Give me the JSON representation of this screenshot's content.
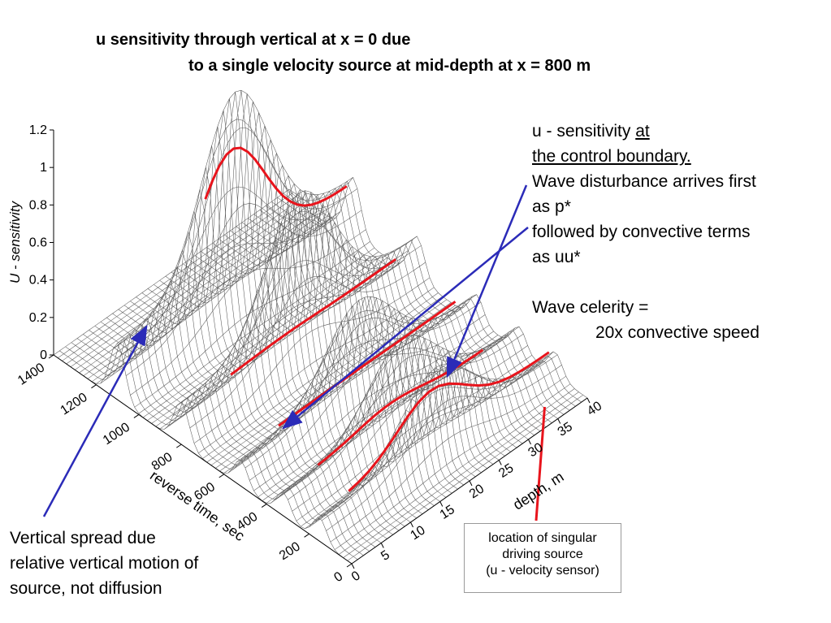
{
  "title": {
    "line1": "u sensitivity through vertical at x = 0 due",
    "line2": "to a single velocity source at mid-depth at x = 800 m"
  },
  "annotations": {
    "right": {
      "line1_prefix": "u - sensitivity ",
      "line1_underlined": "at ",
      "line2": "the control boundary.",
      "line3": "Wave disturbance arrives first",
      "line4": "as p*",
      "line5": "followed by convective terms",
      "line6": "as uu*",
      "line7": "Wave celerity =",
      "line8": "20x convective speed"
    },
    "left": {
      "line1": "Vertical spread due",
      "line2": "relative vertical motion of",
      "line3": "source, not diffusion"
    },
    "source_box": {
      "line1": "location of singular",
      "line2": "driving source",
      "line3": "(u - velocity sensor)"
    }
  },
  "colors": {
    "mesh": "#5a5a5a",
    "highlight": "#e8141c",
    "arrow": "#2b2bb8",
    "axis": "#000000"
  },
  "chart_data": {
    "type": "surface",
    "zlabel": "U - sensitivity",
    "xlabel": "reverse time, sec",
    "ylabel": "depth, m",
    "z_ticks": [
      "0",
      "0.2",
      "0.4",
      "0.6",
      "0.8",
      "1",
      "1.2"
    ],
    "time_ticks": [
      "0",
      "200",
      "400",
      "600",
      "800",
      "1000",
      "1200",
      "1400"
    ],
    "depth_ticks": [
      "0",
      "5",
      "10",
      "15",
      "20",
      "25",
      "30",
      "35",
      "40"
    ],
    "time_range": [
      0,
      1400
    ],
    "depth_range": [
      0,
      40
    ],
    "z_range": [
      0,
      1.2
    ],
    "surface_ridges": [
      {
        "time_peak": 150,
        "depth_center": 20,
        "depth_drift_per_sec": 0.0,
        "amplitude": 0.5,
        "width_sec": 45
      },
      {
        "time_peak": 320,
        "depth_center": 20,
        "depth_drift_per_sec": 0.004,
        "amplitude": 0.5,
        "width_sec": 45
      },
      {
        "time_peak": 520,
        "depth_center": 20,
        "depth_drift_per_sec": 0.008,
        "amplitude": 0.55,
        "width_sec": 45
      },
      {
        "time_peak": 800,
        "depth_center": 20,
        "depth_drift_per_sec": 0.012,
        "amplitude": 0.9,
        "width_sec": 50
      },
      {
        "time_peak": 1100,
        "depth_center": 20,
        "depth_drift_per_sec": 0.014,
        "amplitude": 1.2,
        "width_sec": 50
      }
    ],
    "ridge_width_depth_m": 8,
    "highlight_traces": [
      {
        "time": 180,
        "depth_from": 6,
        "depth_to": 40
      },
      {
        "time": 380,
        "depth_from": 8,
        "depth_to": 36
      },
      {
        "time": 620,
        "depth_from": 10,
        "depth_to": 40
      },
      {
        "time": 900,
        "depth_from": 12,
        "depth_to": 40
      },
      {
        "time": 1130,
        "depth_from": 16,
        "depth_to": 40
      }
    ]
  }
}
